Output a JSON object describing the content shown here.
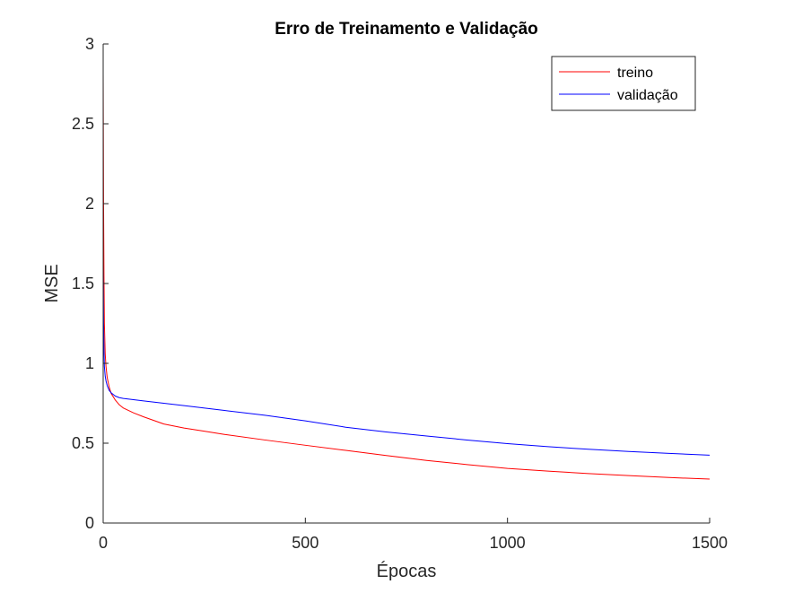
{
  "chart_data": {
    "type": "line",
    "title": "Erro de Treinamento e Validação",
    "xlabel": "Épocas",
    "ylabel": "MSE",
    "xlim": [
      0,
      1500
    ],
    "ylim": [
      0,
      3
    ],
    "xticks": [
      0,
      500,
      1000,
      1500
    ],
    "yticks": [
      0,
      0.5,
      1,
      1.5,
      2,
      2.5,
      3
    ],
    "xtick_labels": [
      "0",
      "500",
      "1000",
      "1500"
    ],
    "ytick_labels": [
      "0",
      "0.5",
      "1",
      "1.5",
      "2",
      "2.5",
      "3"
    ],
    "grid": false,
    "legend_position": "top-right",
    "series": [
      {
        "name": "treino",
        "color": "#ff0000",
        "x": [
          0,
          1,
          2,
          3,
          5,
          7,
          10,
          15,
          20,
          30,
          40,
          50,
          75,
          100,
          150,
          200,
          250,
          300,
          400,
          500,
          600,
          700,
          800,
          900,
          1000,
          1100,
          1200,
          1300,
          1400,
          1500
        ],
        "y": [
          2.82,
          2.0,
          1.55,
          1.25,
          1.06,
          0.98,
          0.91,
          0.85,
          0.81,
          0.77,
          0.74,
          0.72,
          0.69,
          0.665,
          0.62,
          0.595,
          0.575,
          0.555,
          0.52,
          0.487,
          0.455,
          0.423,
          0.392,
          0.366,
          0.342,
          0.325,
          0.31,
          0.297,
          0.285,
          0.275
        ]
      },
      {
        "name": "validação",
        "color": "#0000ff",
        "x": [
          0,
          1,
          2,
          3,
          5,
          7,
          10,
          15,
          20,
          25,
          30,
          40,
          50,
          100,
          150,
          200,
          300,
          400,
          500,
          600,
          700,
          800,
          900,
          1000,
          1100,
          1200,
          1300,
          1400,
          1500
        ],
        "y": [
          1.62,
          1.25,
          1.08,
          0.98,
          0.92,
          0.89,
          0.86,
          0.83,
          0.815,
          0.805,
          0.795,
          0.785,
          0.78,
          0.765,
          0.75,
          0.735,
          0.705,
          0.675,
          0.64,
          0.6,
          0.57,
          0.545,
          0.52,
          0.497,
          0.478,
          0.462,
          0.448,
          0.436,
          0.425
        ]
      }
    ]
  }
}
